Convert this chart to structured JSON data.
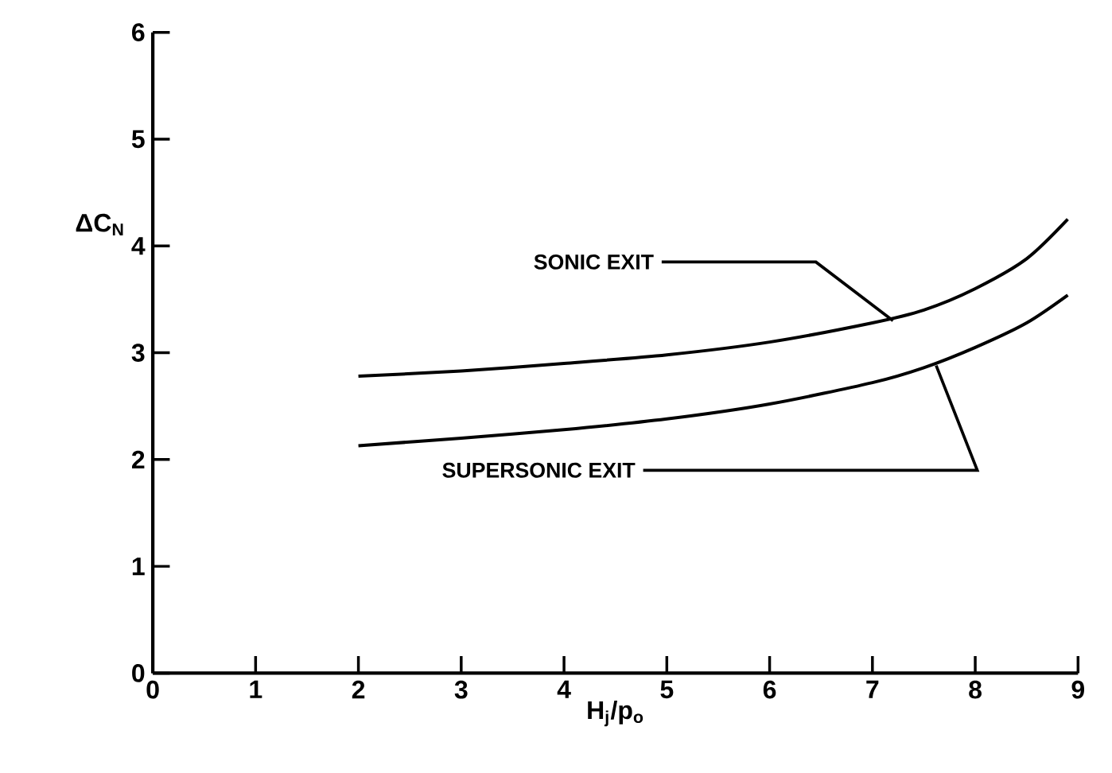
{
  "chart_data": {
    "type": "line",
    "xlabel": "H$_{j}$/p$_{o}$",
    "ylabel": "ΔC$_{N}$",
    "xlim": [
      0,
      9
    ],
    "ylim": [
      0,
      6
    ],
    "xticks": [
      0,
      1,
      2,
      3,
      4,
      5,
      6,
      7,
      8,
      9
    ],
    "yticks": [
      0,
      1,
      2,
      3,
      4,
      5,
      6
    ],
    "grid": false,
    "marker": "none",
    "line_style": "solid",
    "series": [
      {
        "color": "#000000",
        "x": [
          2,
          3,
          4,
          5,
          6,
          7,
          7.5,
          8,
          8.5,
          8.9
        ],
        "values": [
          2.78,
          2.83,
          2.9,
          2.98,
          3.1,
          3.28,
          3.4,
          3.6,
          3.88,
          4.25
        ]
      },
      {
        "color": "#000000",
        "x": [
          2,
          3,
          4,
          5,
          6,
          7,
          7.5,
          8,
          8.5,
          8.9
        ],
        "values": [
          2.13,
          2.2,
          2.28,
          2.38,
          2.52,
          2.72,
          2.86,
          3.05,
          3.28,
          3.54
        ]
      }
    ],
    "annotations": [
      {
        "text": "SONIC EXIT",
        "x": 7.2,
        "y": 3.3
      },
      {
        "text": "SUPERSONIC EXIT",
        "x": 7.62,
        "y": 2.88
      }
    ]
  }
}
